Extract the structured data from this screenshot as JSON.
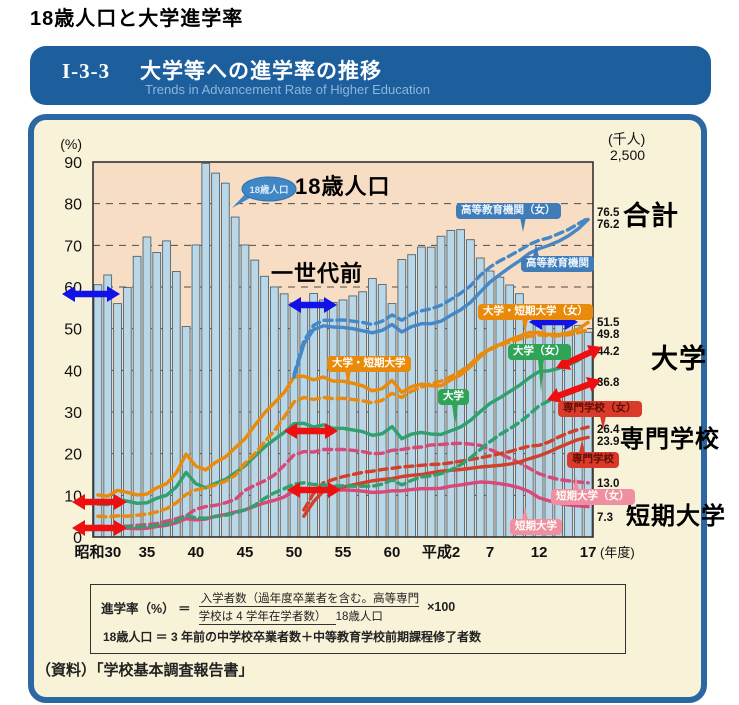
{
  "page": {
    "title": "18歳人口と大学進学率"
  },
  "banner": {
    "code": "I-3-3",
    "title": "大学等への進学率の推移",
    "subtitle": "Trends in Advancement Rate of Higher Education"
  },
  "annotations": {
    "pop_bubble": "18歳人口",
    "pop_black": "18歳人口",
    "generation": "一世代前",
    "total": "合計",
    "univ": "大学",
    "senmon": "専門学校",
    "jc": "短期大学"
  },
  "formula": {
    "lhs": "進学率（%） ＝",
    "num1": "入学者数（過年度卒業者を含む。高等専門",
    "num2": "学校は 4 学年在学者数）",
    "den": "18歳人口",
    "times": "×100",
    "def": "18歳人口 ＝ 3 年前の中学校卒業者数＋中等教育学校前期課程修了者数"
  },
  "source": "（資料）「学校基本調査報告書」",
  "colors": {
    "banner_blue": "#1d5f9c",
    "panel_cream": "#f8f2d8",
    "plot_peach": "#f6ddc3",
    "bar_fill": "#b9d7e7",
    "bar_stroke": "#4f6573",
    "arrow_blue": "#1212e6",
    "arrow_red": "#ee1010"
  },
  "chart_data": {
    "type": "bar+line",
    "x": {
      "start": 1955,
      "end": 2005,
      "tick_labels": [
        "昭和30",
        "35",
        "40",
        "45",
        "50",
        "55",
        "60",
        "平成2",
        "7",
        "12",
        "17"
      ],
      "suffix": "(年度)"
    },
    "y_left": {
      "unit": "(%)",
      "min": 0,
      "max": 90,
      "ticks": [
        "90",
        "80",
        "70",
        "60",
        "50",
        "40",
        "30",
        "20",
        "10",
        "0"
      ],
      "grid": "dashed"
    },
    "y_right": {
      "unit": "(千人)",
      "max": 2500,
      "top_label": "2,500"
    },
    "bars": {
      "name": "18歳人口",
      "unit": "千人",
      "axis_max": 2500,
      "values": [
        1682,
        1747,
        1556,
        1663,
        1871,
        2000,
        1897,
        1974,
        1770,
        1403,
        1947,
        2491,
        2426,
        2359,
        2133,
        1947,
        1846,
        1738,
        1667,
        1621,
        1561,
        1542,
        1623,
        1580,
        1563,
        1580,
        1607,
        1635,
        1723,
        1683,
        1556,
        1850,
        1882,
        1933,
        1932,
        2005,
        2044,
        2049,
        1982,
        1860,
        1773,
        1732,
        1680,
        1622,
        1545,
        1511,
        1512,
        1503,
        1464,
        1411,
        1365
      ]
    },
    "series": [
      {
        "id": "jc_w",
        "name": "短期大学（女）",
        "color": "#d84878",
        "dash": true,
        "start": 1955,
        "end_value": 13.0,
        "values": [
          2.6,
          2.5,
          2.6,
          2.6,
          2.8,
          3.0,
          3.2,
          3.8,
          4.4,
          5.1,
          6.7,
          7.3,
          7.6,
          8.2,
          9.0,
          11.2,
          12.4,
          13.5,
          14.9,
          17.2,
          19.7,
          20.5,
          20.4,
          21.0,
          21.0,
          21.0,
          20.8,
          20.5,
          20.0,
          20.1,
          20.8,
          21.0,
          21.4,
          21.6,
          22.1,
          22.2,
          22.4,
          22.5,
          22.3,
          22.0,
          21.0,
          20.0,
          18.9,
          17.8,
          16.5,
          15.2,
          14.4,
          13.8,
          13.5,
          13.2,
          13.0
        ]
      },
      {
        "id": "jc",
        "name": "短期大学",
        "color": "#d84878",
        "dash": false,
        "start": 1955,
        "end_value": 7.3,
        "values": [
          2.2,
          2.0,
          2.2,
          2.1,
          2.0,
          2.1,
          2.5,
          2.8,
          3.4,
          4.4,
          4.1,
          4.3,
          5.0,
          5.4,
          6.0,
          6.5,
          7.4,
          8.2,
          8.8,
          9.6,
          11.2,
          11.3,
          11.3,
          11.5,
          11.3,
          11.3,
          11.2,
          11.0,
          10.7,
          10.8,
          11.1,
          11.1,
          11.4,
          11.6,
          11.6,
          11.7,
          12.2,
          12.5,
          12.9,
          13.2,
          13.1,
          12.8,
          12.4,
          11.8,
          10.9,
          9.4,
          8.7,
          8.1,
          7.7,
          7.5,
          7.3
        ]
      },
      {
        "id": "senmon_w",
        "name": "専門学校（女）",
        "color": "#d2402a",
        "dash": true,
        "start": 1976,
        "end_value": 26.4,
        "values": [
          6.5,
          10.5,
          13.0,
          13.8,
          14.5,
          15.0,
          15.5,
          15.8,
          16.2,
          16.5,
          16.8,
          17.0,
          17.2,
          17.4,
          17.5,
          17.8,
          18.2,
          18.6,
          19.0,
          19.5,
          20.0,
          20.5,
          21.2,
          21.8,
          22.0,
          22.8,
          24.0,
          25.0,
          25.8,
          26.4
        ]
      },
      {
        "id": "senmon",
        "name": "専門学校",
        "color": "#d2402a",
        "dash": false,
        "start": 1976,
        "end_value": 23.9,
        "values": [
          5.0,
          8.5,
          11.0,
          11.5,
          12.0,
          12.5,
          13.0,
          13.5,
          13.8,
          14.0,
          14.5,
          14.8,
          15.0,
          15.4,
          15.8,
          16.0,
          16.2,
          16.5,
          16.8,
          17.0,
          17.2,
          17.5,
          18.0,
          18.8,
          19.5,
          20.4,
          21.5,
          22.5,
          23.4,
          23.9
        ]
      },
      {
        "id": "univ_w",
        "name": "大学（女）",
        "color": "#2fa06e",
        "dash": true,
        "start": 1955,
        "end_value": 36.8,
        "values": [
          2.4,
          2.3,
          2.5,
          2.4,
          2.4,
          2.5,
          2.8,
          3.0,
          3.8,
          5.1,
          4.6,
          4.5,
          4.9,
          5.2,
          5.8,
          6.5,
          7.6,
          9.3,
          10.6,
          11.6,
          12.7,
          13.0,
          12.6,
          12.5,
          12.2,
          12.3,
          12.2,
          12.2,
          12.2,
          12.7,
          13.7,
          12.5,
          13.6,
          14.4,
          14.7,
          15.2,
          16.1,
          17.3,
          19.0,
          21.0,
          22.9,
          24.6,
          26.0,
          27.5,
          29.4,
          31.5,
          32.7,
          33.8,
          34.4,
          35.2,
          36.8
        ]
      },
      {
        "id": "univ",
        "name": "大学",
        "color": "#2fa06e",
        "dash": false,
        "start": 1955,
        "end_value": 44.2,
        "values": [
          7.9,
          7.8,
          9.0,
          8.6,
          8.1,
          8.2,
          9.3,
          10.0,
          12.0,
          15.5,
          12.8,
          11.8,
          12.9,
          13.8,
          15.4,
          17.1,
          19.4,
          21.6,
          23.4,
          25.1,
          27.2,
          27.3,
          26.4,
          26.9,
          26.1,
          26.1,
          25.7,
          25.3,
          24.4,
          24.8,
          26.5,
          23.6,
          24.7,
          25.1,
          24.7,
          24.6,
          25.5,
          26.4,
          28.0,
          30.1,
          32.1,
          33.4,
          34.9,
          36.4,
          38.2,
          39.7,
          39.9,
          40.5,
          41.3,
          42.4,
          44.2
        ]
      },
      {
        "id": "univ_jc_w",
        "name": "大学・短期大学（女）",
        "color": "#ea8a0a",
        "dash": true,
        "start": 1955,
        "end_value": 49.8,
        "values": [
          5.0,
          4.8,
          5.1,
          5.0,
          5.2,
          5.5,
          6.0,
          6.8,
          8.2,
          10.2,
          11.3,
          11.8,
          12.5,
          13.4,
          14.8,
          17.7,
          20.0,
          22.8,
          25.5,
          28.8,
          32.4,
          33.5,
          33.0,
          33.5,
          33.2,
          33.3,
          33.0,
          32.7,
          32.2,
          32.8,
          34.5,
          33.5,
          35.0,
          36.0,
          36.8,
          37.4,
          38.5,
          39.8,
          41.5,
          43.8,
          45.0,
          46.0,
          46.8,
          47.5,
          48.2,
          48.5,
          48.3,
          48.3,
          48.5,
          49.0,
          49.8
        ]
      },
      {
        "id": "univ_jc",
        "name": "大学・短期大学",
        "color": "#ea8a0a",
        "dash": false,
        "start": 1955,
        "end_value": 51.5,
        "values": [
          10.1,
          9.8,
          11.2,
          10.7,
          10.1,
          10.3,
          11.8,
          12.8,
          15.4,
          19.9,
          17.0,
          16.1,
          17.9,
          19.2,
          21.4,
          23.6,
          26.8,
          29.8,
          32.2,
          34.7,
          38.4,
          38.6,
          37.7,
          38.4,
          37.4,
          37.4,
          36.9,
          36.3,
          35.1,
          35.6,
          37.6,
          34.7,
          36.1,
          36.7,
          36.3,
          36.3,
          37.7,
          38.9,
          40.9,
          43.3,
          45.2,
          46.2,
          47.3,
          48.2,
          49.1,
          49.1,
          48.6,
          48.6,
          49.0,
          49.9,
          51.5
        ]
      },
      {
        "id": "hed_w",
        "name": "高等教育機関（女）",
        "color": "#4688c6",
        "dash": true,
        "start": 1975,
        "end_value": 76.5,
        "values": [
          39.0,
          47.0,
          50.8,
          52.0,
          52.0,
          52.1,
          51.8,
          51.5,
          51.0,
          51.8,
          53.3,
          52.0,
          53.5,
          54.3,
          54.8,
          55.6,
          57.0,
          58.5,
          60.3,
          62.8,
          64.8,
          66.3,
          67.5,
          68.8,
          70.2,
          71.2,
          71.8,
          72.8,
          73.8,
          75.2,
          76.5
        ]
      },
      {
        "id": "hed",
        "name": "高等教育機関",
        "color": "#4688c6",
        "dash": false,
        "start": 1975,
        "end_value": 76.2,
        "values": [
          38.4,
          46.3,
          49.8,
          50.7,
          50.4,
          50.3,
          50.0,
          49.5,
          49.0,
          49.6,
          51.0,
          49.2,
          50.5,
          51.2,
          51.2,
          51.8,
          53.2,
          54.5,
          56.3,
          58.8,
          61.2,
          63.0,
          64.7,
          66.3,
          68.1,
          69.2,
          70.0,
          71.0,
          72.3,
          74.0,
          76.2
        ]
      }
    ],
    "right_value_labels": [
      "76.5",
      "76.2",
      "51.5",
      "49.8",
      "44.2",
      "36.8",
      "26.4",
      "23.9",
      "13.0",
      "7.3"
    ]
  }
}
